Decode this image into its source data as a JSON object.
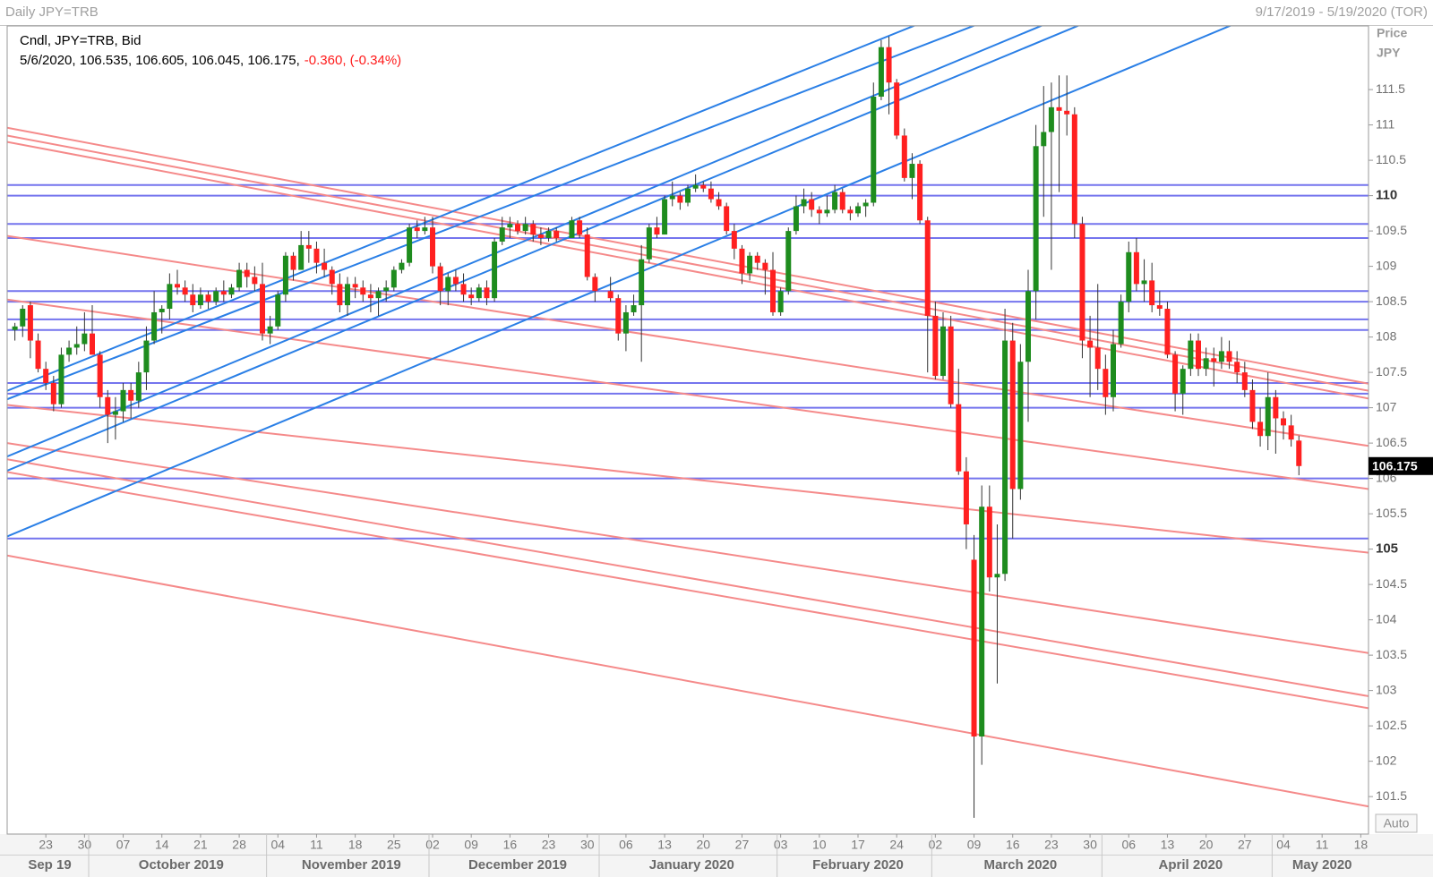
{
  "header": {
    "left": "Daily JPY=TRB",
    "right": "9/17/2019 - 5/19/2020 (TOR)"
  },
  "auto_button": "Auto",
  "chart_data": {
    "type": "candlestick",
    "info_title": "Cndl, JPY=TRB, Bid",
    "info_values": "5/6/2020, 106.535, 106.605, 106.045, 106.175,",
    "info_change": "-0.360, (-0.34%)",
    "y_label": "Price",
    "y_unit": "JPY",
    "up_color": "#1e8c1e",
    "down_color": "#ff2020",
    "wick_color": "#333333",
    "x": [
      "2019-09-17",
      "2019-09-18",
      "2019-09-19",
      "2019-09-20",
      "2019-09-23",
      "2019-09-24",
      "2019-09-25",
      "2019-09-26",
      "2019-09-27",
      "2019-09-30",
      "2019-10-01",
      "2019-10-02",
      "2019-10-03",
      "2019-10-04",
      "2019-10-07",
      "2019-10-08",
      "2019-10-09",
      "2019-10-10",
      "2019-10-11",
      "2019-10-14",
      "2019-10-15",
      "2019-10-16",
      "2019-10-17",
      "2019-10-18",
      "2019-10-21",
      "2019-10-22",
      "2019-10-23",
      "2019-10-24",
      "2019-10-25",
      "2019-10-28",
      "2019-10-29",
      "2019-10-30",
      "2019-10-31",
      "2019-11-01",
      "2019-11-04",
      "2019-11-05",
      "2019-11-06",
      "2019-11-07",
      "2019-11-08",
      "2019-11-11",
      "2019-11-12",
      "2019-11-13",
      "2019-11-14",
      "2019-11-15",
      "2019-11-18",
      "2019-11-19",
      "2019-11-20",
      "2019-11-21",
      "2019-11-22",
      "2019-11-25",
      "2019-11-26",
      "2019-11-27",
      "2019-11-28",
      "2019-11-29",
      "2019-12-02",
      "2019-12-03",
      "2019-12-04",
      "2019-12-05",
      "2019-12-06",
      "2019-12-09",
      "2019-12-10",
      "2019-12-11",
      "2019-12-12",
      "2019-12-13",
      "2019-12-16",
      "2019-12-17",
      "2019-12-18",
      "2019-12-19",
      "2019-12-20",
      "2019-12-23",
      "2019-12-24",
      "2019-12-26",
      "2019-12-27",
      "2019-12-30",
      "2019-12-31",
      "2020-01-02",
      "2020-01-03",
      "2020-01-06",
      "2020-01-07",
      "2020-01-08",
      "2020-01-09",
      "2020-01-10",
      "2020-01-13",
      "2020-01-14",
      "2020-01-15",
      "2020-01-16",
      "2020-01-17",
      "2020-01-20",
      "2020-01-21",
      "2020-01-22",
      "2020-01-23",
      "2020-01-24",
      "2020-01-27",
      "2020-01-28",
      "2020-01-29",
      "2020-01-30",
      "2020-01-31",
      "2020-02-03",
      "2020-02-04",
      "2020-02-05",
      "2020-02-06",
      "2020-02-07",
      "2020-02-10",
      "2020-02-11",
      "2020-02-12",
      "2020-02-13",
      "2020-02-14",
      "2020-02-17",
      "2020-02-18",
      "2020-02-19",
      "2020-02-20",
      "2020-02-21",
      "2020-02-24",
      "2020-02-25",
      "2020-02-26",
      "2020-02-27",
      "2020-02-28",
      "2020-03-02",
      "2020-03-03",
      "2020-03-04",
      "2020-03-05",
      "2020-03-06",
      "2020-03-09",
      "2020-03-10",
      "2020-03-11",
      "2020-03-12",
      "2020-03-13",
      "2020-03-16",
      "2020-03-17",
      "2020-03-18",
      "2020-03-19",
      "2020-03-20",
      "2020-03-23",
      "2020-03-24",
      "2020-03-25",
      "2020-03-26",
      "2020-03-27",
      "2020-03-30",
      "2020-03-31",
      "2020-04-01",
      "2020-04-02",
      "2020-04-03",
      "2020-04-06",
      "2020-04-07",
      "2020-04-08",
      "2020-04-09",
      "2020-04-10",
      "2020-04-13",
      "2020-04-14",
      "2020-04-15",
      "2020-04-16",
      "2020-04-17",
      "2020-04-20",
      "2020-04-21",
      "2020-04-22",
      "2020-04-23",
      "2020-04-24",
      "2020-04-27",
      "2020-04-28",
      "2020-04-29",
      "2020-04-30",
      "2020-05-01",
      "2020-05-04",
      "2020-05-05",
      "2020-05-06"
    ],
    "open": [
      108.1,
      108.15,
      108.45,
      107.95,
      107.55,
      107.35,
      107.05,
      107.75,
      107.85,
      107.9,
      108.05,
      107.75,
      107.15,
      106.9,
      106.95,
      107.25,
      107.1,
      107.5,
      107.95,
      108.35,
      108.4,
      108.75,
      108.7,
      108.6,
      108.45,
      108.6,
      108.5,
      108.65,
      108.6,
      108.7,
      108.95,
      108.85,
      108.75,
      108.05,
      108.15,
      108.6,
      109.15,
      108.95,
      109.3,
      109.25,
      109.05,
      108.95,
      108.75,
      108.45,
      108.75,
      108.7,
      108.6,
      108.55,
      108.65,
      108.7,
      108.95,
      109.05,
      109.55,
      109.5,
      109.55,
      109.0,
      108.65,
      108.85,
      108.75,
      108.6,
      108.55,
      108.7,
      108.55,
      109.35,
      109.55,
      109.6,
      109.5,
      109.6,
      109.45,
      109.4,
      109.5,
      109.4,
      109.65,
      109.45,
      108.85,
      108.65,
      108.55,
      108.05,
      108.35,
      108.45,
      109.1,
      109.55,
      109.45,
      109.95,
      110.0,
      109.9,
      110.1,
      110.15,
      110.1,
      109.95,
      109.85,
      109.5,
      109.25,
      108.9,
      109.15,
      109.05,
      108.95,
      108.35,
      108.65,
      109.5,
      109.85,
      109.95,
      109.8,
      109.75,
      109.8,
      110.05,
      109.8,
      109.75,
      109.85,
      109.9,
      111.4,
      112.1,
      111.6,
      110.85,
      110.25,
      110.45,
      109.65,
      108.3,
      107.45,
      108.15,
      107.05,
      106.1,
      104.85,
      102.35,
      105.6,
      104.6,
      104.65,
      107.95,
      105.85,
      107.65,
      108.65,
      110.7,
      110.9,
      111.25,
      111.2,
      111.15,
      109.6,
      107.95,
      107.85,
      107.55,
      107.15,
      107.9,
      108.5,
      109.2,
      108.75,
      108.8,
      108.45,
      108.4,
      107.75,
      107.2,
      107.55,
      107.95,
      107.55,
      107.7,
      107.65,
      107.8,
      107.65,
      107.5,
      107.25,
      106.8,
      106.6,
      107.15,
      106.85,
      106.75,
      106.535
    ],
    "high": [
      108.2,
      108.45,
      108.5,
      108.05,
      107.65,
      107.45,
      107.85,
      107.95,
      108.15,
      108.35,
      108.45,
      107.8,
      107.25,
      107.15,
      107.35,
      107.35,
      107.65,
      108.15,
      108.65,
      108.45,
      108.9,
      108.95,
      108.8,
      108.75,
      108.7,
      108.65,
      108.7,
      108.8,
      108.75,
      109.05,
      109.05,
      109.0,
      109.05,
      108.3,
      108.65,
      109.2,
      109.2,
      109.5,
      109.5,
      109.35,
      109.25,
      109.0,
      108.9,
      108.85,
      108.85,
      108.8,
      108.75,
      108.7,
      108.8,
      109.0,
      109.1,
      109.6,
      109.65,
      109.7,
      109.7,
      109.05,
      108.9,
      108.95,
      108.9,
      108.7,
      108.75,
      108.8,
      109.4,
      109.7,
      109.7,
      109.65,
      109.7,
      109.65,
      109.55,
      109.55,
      109.55,
      109.7,
      109.7,
      109.55,
      108.9,
      108.85,
      108.6,
      108.45,
      108.6,
      109.3,
      109.6,
      109.7,
      110.0,
      110.2,
      110.05,
      110.15,
      110.3,
      110.2,
      110.2,
      110.05,
      109.9,
      109.6,
      109.3,
      109.2,
      109.2,
      109.1,
      109.2,
      108.7,
      109.55,
      110.0,
      110.1,
      110.05,
      109.85,
      110.0,
      110.15,
      110.1,
      109.85,
      109.9,
      109.95,
      111.6,
      112.2,
      112.25,
      111.65,
      110.95,
      110.6,
      110.5,
      109.7,
      108.5,
      108.35,
      108.3,
      107.55,
      106.3,
      105.2,
      105.9,
      105.9,
      105.35,
      108.4,
      108.2,
      107.9,
      108.95,
      111.0,
      111.55,
      111.6,
      111.7,
      111.7,
      111.25,
      109.7,
      108.3,
      108.75,
      107.75,
      108.1,
      108.6,
      109.35,
      109.4,
      109.1,
      109.05,
      108.65,
      108.5,
      107.8,
      107.6,
      108.05,
      108.05,
      107.85,
      107.85,
      108.0,
      107.95,
      107.8,
      107.65,
      107.4,
      107.0,
      107.5,
      107.25,
      106.95,
      106.9,
      106.605
    ],
    "low": [
      107.95,
      108.0,
      107.7,
      107.5,
      107.25,
      106.95,
      107.0,
      107.65,
      107.75,
      107.8,
      107.75,
      107.0,
      106.5,
      106.55,
      106.8,
      106.85,
      107.0,
      107.25,
      107.9,
      108.05,
      108.25,
      108.6,
      108.5,
      108.35,
      108.4,
      108.4,
      108.45,
      108.5,
      108.55,
      108.65,
      108.7,
      108.65,
      107.95,
      107.9,
      108.1,
      108.5,
      108.8,
      108.95,
      109.05,
      108.9,
      108.85,
      108.6,
      108.35,
      108.3,
      108.55,
      108.5,
      108.35,
      108.3,
      108.5,
      108.65,
      108.9,
      109.0,
      109.4,
      109.45,
      108.9,
      108.45,
      108.45,
      108.65,
      108.5,
      108.45,
      108.5,
      108.45,
      108.5,
      109.3,
      109.4,
      109.45,
      109.45,
      109.35,
      109.3,
      109.35,
      109.35,
      109.4,
      109.4,
      108.8,
      108.5,
      108.5,
      107.95,
      107.8,
      108.3,
      107.65,
      109.05,
      109.4,
      109.45,
      109.85,
      109.8,
      109.85,
      110.05,
      110.05,
      109.9,
      109.8,
      109.45,
      109.1,
      108.75,
      108.8,
      108.95,
      108.6,
      108.3,
      108.3,
      108.6,
      109.45,
      109.75,
      109.7,
      109.6,
      109.7,
      109.75,
      109.75,
      109.65,
      109.7,
      109.7,
      109.85,
      111.35,
      111.15,
      110.8,
      110.2,
      109.95,
      109.6,
      107.5,
      107.4,
      107.4,
      107.0,
      106.05,
      105.0,
      101.2,
      101.95,
      104.4,
      103.1,
      104.55,
      105.15,
      105.7,
      106.8,
      108.25,
      109.7,
      108.95,
      110.05,
      110.85,
      109.4,
      107.7,
      107.15,
      107.25,
      106.9,
      106.95,
      107.85,
      108.35,
      108.65,
      108.5,
      108.35,
      108.3,
      107.7,
      106.95,
      106.9,
      107.45,
      107.45,
      107.45,
      107.3,
      107.55,
      107.55,
      107.35,
      107.15,
      106.7,
      106.45,
      106.4,
      106.35,
      106.55,
      106.45,
      106.045
    ],
    "close": [
      108.15,
      108.4,
      107.95,
      107.55,
      107.35,
      107.05,
      107.75,
      107.85,
      107.9,
      108.05,
      107.75,
      107.15,
      106.9,
      106.95,
      107.25,
      107.1,
      107.5,
      107.95,
      108.35,
      108.4,
      108.75,
      108.7,
      108.6,
      108.45,
      108.6,
      108.5,
      108.65,
      108.6,
      108.7,
      108.95,
      108.85,
      108.75,
      108.05,
      108.15,
      108.6,
      109.15,
      108.95,
      109.3,
      109.25,
      109.05,
      108.95,
      108.75,
      108.45,
      108.75,
      108.7,
      108.6,
      108.55,
      108.65,
      108.7,
      108.95,
      109.05,
      109.55,
      109.5,
      109.55,
      109.0,
      108.65,
      108.85,
      108.75,
      108.6,
      108.55,
      108.7,
      108.55,
      109.35,
      109.55,
      109.6,
      109.5,
      109.6,
      109.45,
      109.4,
      109.5,
      109.4,
      109.65,
      109.45,
      108.85,
      108.65,
      108.55,
      108.05,
      108.35,
      108.45,
      109.1,
      109.55,
      109.45,
      109.95,
      110.0,
      109.9,
      110.1,
      110.15,
      110.1,
      109.95,
      109.85,
      109.5,
      109.25,
      108.9,
      109.15,
      109.05,
      108.95,
      108.35,
      108.65,
      109.5,
      109.85,
      109.95,
      109.8,
      109.75,
      109.8,
      110.05,
      109.8,
      109.75,
      109.85,
      109.9,
      111.4,
      112.1,
      111.6,
      110.85,
      110.25,
      110.45,
      109.65,
      108.3,
      107.45,
      108.15,
      107.05,
      106.1,
      105.35,
      102.35,
      105.6,
      104.6,
      104.65,
      107.95,
      105.85,
      107.65,
      108.65,
      110.7,
      110.9,
      111.25,
      111.2,
      111.15,
      109.6,
      107.95,
      107.85,
      107.55,
      107.15,
      107.9,
      108.5,
      109.2,
      108.75,
      108.8,
      108.45,
      108.4,
      107.75,
      107.2,
      107.55,
      107.95,
      107.55,
      107.7,
      107.65,
      107.8,
      107.65,
      107.5,
      107.25,
      106.8,
      106.6,
      107.15,
      106.85,
      106.75,
      106.55,
      106.175
    ],
    "xlim": [
      "2019-09-16",
      "2020-05-19"
    ],
    "xticks": [
      {
        "value": "2019-09-23",
        "label": "23"
      },
      {
        "value": "2019-09-30",
        "label": "30"
      },
      {
        "value": "2019-10-07",
        "label": "07"
      },
      {
        "value": "2019-10-14",
        "label": "14"
      },
      {
        "value": "2019-10-21",
        "label": "21"
      },
      {
        "value": "2019-10-28",
        "label": "28"
      },
      {
        "value": "2019-11-04",
        "label": "04"
      },
      {
        "value": "2019-11-11",
        "label": "11"
      },
      {
        "value": "2019-11-18",
        "label": "18"
      },
      {
        "value": "2019-11-25",
        "label": "25"
      },
      {
        "value": "2019-12-02",
        "label": "02"
      },
      {
        "value": "2019-12-09",
        "label": "09"
      },
      {
        "value": "2019-12-16",
        "label": "16"
      },
      {
        "value": "2019-12-23",
        "label": "23"
      },
      {
        "value": "2019-12-30",
        "label": "30"
      },
      {
        "value": "2020-01-06",
        "label": "06"
      },
      {
        "value": "2020-01-13",
        "label": "13"
      },
      {
        "value": "2020-01-20",
        "label": "20"
      },
      {
        "value": "2020-01-27",
        "label": "27"
      },
      {
        "value": "2020-02-03",
        "label": "03"
      },
      {
        "value": "2020-02-10",
        "label": "10"
      },
      {
        "value": "2020-02-17",
        "label": "17"
      },
      {
        "value": "2020-02-24",
        "label": "24"
      },
      {
        "value": "2020-03-02",
        "label": "02"
      },
      {
        "value": "2020-03-09",
        "label": "09"
      },
      {
        "value": "2020-03-16",
        "label": "16"
      },
      {
        "value": "2020-03-23",
        "label": "23"
      },
      {
        "value": "2020-03-30",
        "label": "30"
      },
      {
        "value": "2020-04-06",
        "label": "06"
      },
      {
        "value": "2020-04-13",
        "label": "13"
      },
      {
        "value": "2020-04-20",
        "label": "20"
      },
      {
        "value": "2020-04-27",
        "label": "27"
      },
      {
        "value": "2020-05-04",
        "label": "04"
      },
      {
        "value": "2020-05-11",
        "label": "11"
      },
      {
        "value": "2020-05-18",
        "label": "18"
      }
    ],
    "months": [
      {
        "value": "2019-09",
        "label": "Sep 19"
      },
      {
        "value": "2019-10",
        "label": "October 2019"
      },
      {
        "value": "2019-11",
        "label": "November 2019"
      },
      {
        "value": "2019-12",
        "label": "December 2019"
      },
      {
        "value": "2020-01",
        "label": "January 2020"
      },
      {
        "value": "2020-02",
        "label": "February 2020"
      },
      {
        "value": "2020-03",
        "label": "March 2020"
      },
      {
        "value": "2020-04",
        "label": "April 2020"
      },
      {
        "value": "2020-05",
        "label": "May 2020"
      }
    ],
    "ylim": [
      100.97,
      112.4
    ],
    "yticks": [
      101.5,
      102,
      102.5,
      103,
      103.5,
      104,
      104.5,
      105,
      105.5,
      106,
      106.5,
      107,
      107.5,
      108,
      108.5,
      109,
      109.5,
      110,
      110.5,
      111,
      111.5
    ],
    "hlines": {
      "color": "#7474ee",
      "values": [
        110.15,
        110.0,
        109.6,
        109.4,
        108.65,
        108.5,
        108.25,
        108.1,
        107.35,
        107.2,
        107.0,
        106.0,
        105.15
      ]
    },
    "trendlines": [
      {
        "color": "#f58a8a",
        "x": [
          "2019-09-16",
          "2020-05-19"
        ],
        "y": [
          110.96,
          107.34
        ]
      },
      {
        "color": "#f58a8a",
        "x": [
          "2019-09-16",
          "2020-05-19"
        ],
        "y": [
          110.85,
          107.24
        ]
      },
      {
        "color": "#f58a8a",
        "x": [
          "2019-09-16",
          "2020-05-19"
        ],
        "y": [
          110.76,
          107.13
        ]
      },
      {
        "color": "#f58a8a",
        "x": [
          "2019-09-16",
          "2020-05-19"
        ],
        "y": [
          109.43,
          106.46
        ]
      },
      {
        "color": "#f58a8a",
        "x": [
          "2019-09-16",
          "2020-05-19"
        ],
        "y": [
          108.53,
          105.85
        ]
      },
      {
        "color": "#f58a8a",
        "x": [
          "2019-09-16",
          "2020-05-19"
        ],
        "y": [
          107.04,
          104.95
        ]
      },
      {
        "color": "#f58a8a",
        "x": [
          "2019-09-16",
          "2020-05-19"
        ],
        "y": [
          106.5,
          103.53
        ]
      },
      {
        "color": "#f58a8a",
        "x": [
          "2019-09-16",
          "2020-05-19"
        ],
        "y": [
          106.27,
          102.92
        ]
      },
      {
        "color": "#f58a8a",
        "x": [
          "2019-09-16",
          "2020-05-19"
        ],
        "y": [
          106.09,
          102.75
        ]
      },
      {
        "color": "#f58a8a",
        "x": [
          "2019-09-16",
          "2020-05-19"
        ],
        "y": [
          104.91,
          101.36
        ]
      },
      {
        "color": "#2a7fe6",
        "x": [
          "2019-09-16",
          "2020-05-19"
        ],
        "y": [
          107.24,
          114.99
        ]
      },
      {
        "color": "#2a7fe6",
        "x": [
          "2019-09-16",
          "2020-05-19"
        ],
        "y": [
          107.12,
          114.56
        ]
      },
      {
        "color": "#2a7fe6",
        "x": [
          "2019-09-16",
          "2020-05-19"
        ],
        "y": [
          106.31,
          114.33
        ]
      },
      {
        "color": "#2a7fe6",
        "x": [
          "2019-09-16",
          "2020-05-19"
        ],
        "y": [
          106.11,
          114.11
        ]
      },
      {
        "color": "#2a7fe6",
        "x": [
          "2019-09-16",
          "2020-05-19"
        ],
        "y": [
          105.18,
          113.22
        ]
      }
    ]
  }
}
